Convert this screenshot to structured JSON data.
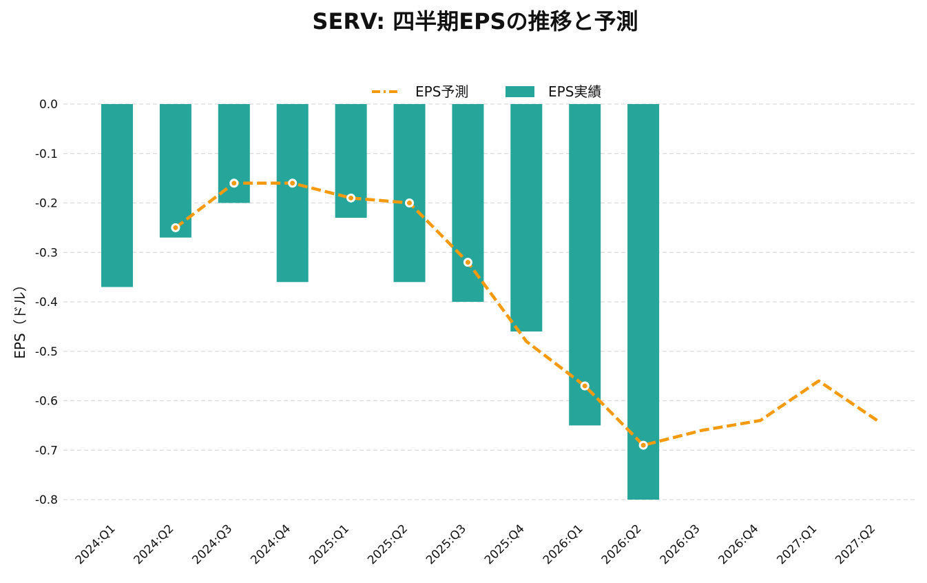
{
  "chart_data": {
    "type": "bar",
    "title": "SERV: 四半期EPSの推移と予測",
    "xlabel": "",
    "ylabel": "EPS（ドル）",
    "ylim": [
      -0.8,
      0.0
    ],
    "yticks": [
      "0.0",
      "-0.1",
      "-0.2",
      "-0.3",
      "-0.4",
      "-0.5",
      "-0.6",
      "-0.7",
      "-0.8"
    ],
    "grid": true,
    "legend_position": "top-center",
    "categories": [
      "2024:Q1",
      "2024:Q2",
      "2024:Q3",
      "2024:Q4",
      "2025:Q1",
      "2025:Q2",
      "2025:Q3",
      "2025:Q4",
      "2026:Q1",
      "2026:Q2",
      "2026:Q3",
      "2026:Q4",
      "2027:Q1",
      "2027:Q2"
    ],
    "series": [
      {
        "name": "EPS実績",
        "kind": "bar",
        "color": "#26a69a",
        "values": [
          -0.37,
          -0.27,
          -0.2,
          -0.36,
          -0.23,
          -0.36,
          -0.4,
          -0.46,
          -0.65,
          -0.8,
          null,
          null,
          null,
          null
        ]
      },
      {
        "name": "EPS予測",
        "kind": "line",
        "color": "#f59a0c",
        "values": [
          null,
          -0.25,
          -0.16,
          -0.16,
          -0.19,
          -0.2,
          -0.32,
          -0.48,
          -0.57,
          -0.69,
          -0.66,
          -0.64,
          -0.56,
          -0.64
        ],
        "markers": [
          false,
          true,
          true,
          true,
          true,
          true,
          true,
          false,
          true,
          true,
          false,
          false,
          false,
          false
        ]
      }
    ]
  }
}
